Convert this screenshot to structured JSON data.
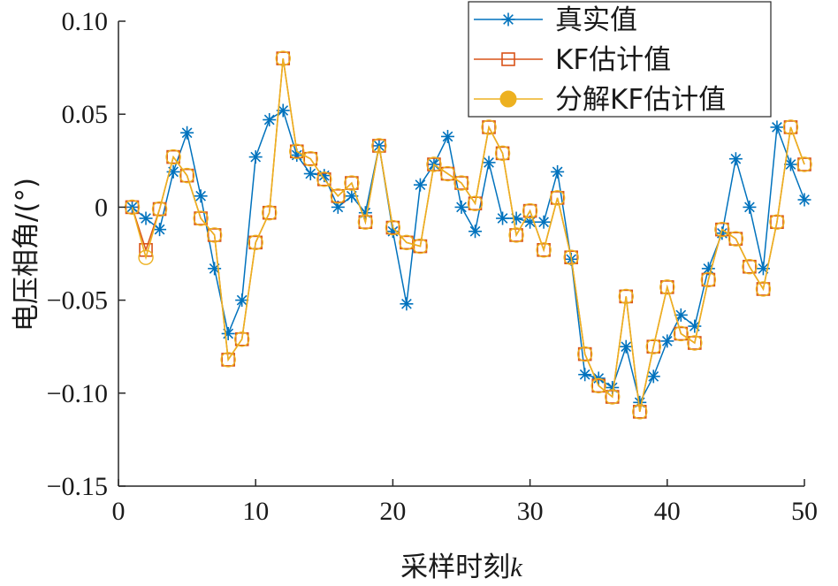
{
  "chart_data": {
    "type": "line",
    "xlabel": "采样时刻",
    "xlabel_var": "k",
    "ylabel": "电压相角/(°)",
    "xlim": [
      0,
      50
    ],
    "ylim": [
      -0.15,
      0.1
    ],
    "xticks": [
      0,
      10,
      20,
      30,
      40,
      50
    ],
    "xtick_labels": [
      "0",
      "10",
      "20",
      "30",
      "40",
      "50"
    ],
    "yticks": [
      0.1,
      0.05,
      0,
      -0.05,
      -0.1,
      -0.15
    ],
    "ytick_labels": [
      "0.10",
      "0.05",
      "0",
      "−0.05",
      "−0.10",
      "−0.15"
    ],
    "grid": false,
    "legend_position": "top-right",
    "x": [
      1,
      2,
      3,
      4,
      5,
      6,
      7,
      8,
      9,
      10,
      11,
      12,
      13,
      14,
      15,
      16,
      17,
      18,
      19,
      20,
      21,
      22,
      23,
      24,
      25,
      26,
      27,
      28,
      29,
      30,
      31,
      32,
      33,
      34,
      35,
      36,
      37,
      38,
      39,
      40,
      41,
      42,
      43,
      44,
      45,
      46,
      47,
      48,
      49,
      50
    ],
    "series": [
      {
        "name": "真实值",
        "color": "#0072bd",
        "marker": "asterisk",
        "values": [
          0.0,
          -0.006,
          -0.012,
          0.019,
          0.04,
          0.006,
          -0.033,
          -0.068,
          -0.05,
          0.027,
          0.047,
          0.052,
          0.028,
          0.018,
          0.017,
          0.0,
          0.006,
          -0.003,
          0.033,
          -0.013,
          -0.052,
          0.012,
          0.023,
          0.038,
          0.0,
          -0.013,
          0.024,
          -0.006,
          -0.006,
          -0.008,
          -0.008,
          0.019,
          -0.028,
          -0.09,
          -0.092,
          -0.097,
          -0.075,
          -0.105,
          -0.091,
          -0.072,
          -0.058,
          -0.064,
          -0.033,
          -0.014,
          0.026,
          0.0,
          -0.033,
          0.043,
          0.023,
          0.004
        ]
      },
      {
        "name": "KF估计值",
        "color": "#d95319",
        "marker": "square",
        "values": [
          0.0,
          -0.023,
          -0.001,
          0.027,
          0.017,
          -0.006,
          -0.015,
          -0.082,
          -0.071,
          -0.019,
          -0.003,
          0.08,
          0.03,
          0.026,
          0.015,
          0.006,
          0.013,
          -0.008,
          0.033,
          -0.011,
          -0.019,
          -0.021,
          0.023,
          0.018,
          0.013,
          0.002,
          0.043,
          0.029,
          -0.015,
          -0.002,
          -0.023,
          0.005,
          -0.027,
          -0.079,
          -0.096,
          -0.102,
          -0.048,
          -0.11,
          -0.075,
          -0.043,
          -0.068,
          -0.073,
          -0.039,
          -0.012,
          -0.017,
          -0.032,
          -0.044,
          -0.008,
          0.043,
          0.023
        ]
      },
      {
        "name": "分解KF估计值",
        "color": "#edb120",
        "marker": "circle",
        "values": [
          0.0,
          -0.027,
          -0.001,
          0.027,
          0.017,
          -0.006,
          -0.015,
          -0.082,
          -0.071,
          -0.019,
          -0.003,
          0.08,
          0.03,
          0.026,
          0.015,
          0.006,
          0.013,
          -0.008,
          0.033,
          -0.011,
          -0.019,
          -0.021,
          0.023,
          0.018,
          0.013,
          0.002,
          0.043,
          0.029,
          -0.015,
          -0.002,
          -0.023,
          0.005,
          -0.027,
          -0.079,
          -0.096,
          -0.102,
          -0.048,
          -0.11,
          -0.075,
          -0.043,
          -0.068,
          -0.073,
          -0.039,
          -0.012,
          -0.017,
          -0.032,
          -0.044,
          -0.008,
          0.043,
          0.023
        ]
      }
    ]
  }
}
